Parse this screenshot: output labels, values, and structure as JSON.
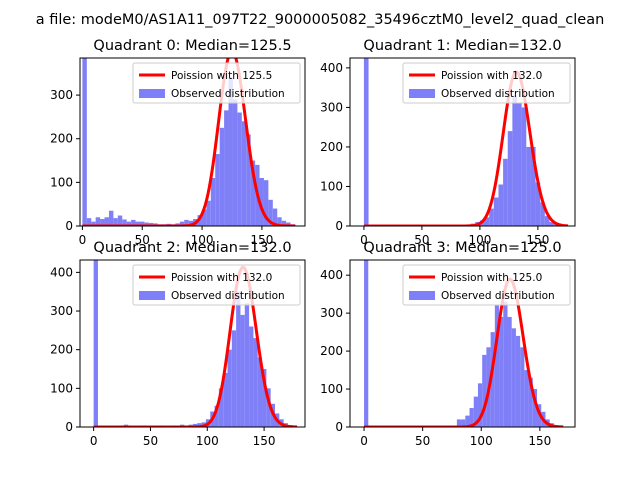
{
  "figure": {
    "suptitle": "a file: modeM0/AS1A11_097T22_9000005082_35496cztM0_level2_quad_clean"
  },
  "colors": {
    "hist": "#7f7ff8",
    "poisson": "#ff0000",
    "axes": "#000000",
    "background": "#ffffff"
  },
  "chart_data": [
    {
      "type": "bar",
      "title": "Quadrant 0: Median=125.5",
      "median": 125.5,
      "xlim": [
        -2,
        186
      ],
      "ylim": [
        0,
        385
      ],
      "xticks": [
        0,
        50,
        100,
        150
      ],
      "yticks": [
        0,
        100,
        200,
        300
      ],
      "bin_width": 3.7,
      "bins": [
        0,
        3.7,
        7.4,
        11.1,
        14.8,
        18.5,
        22.2,
        25.9,
        29.6,
        33.3,
        37,
        40.7,
        44.4,
        48.1,
        51.8,
        55.5,
        59.2,
        62.9,
        66.6,
        70.3,
        74,
        77.7,
        81.4,
        85.1,
        88.8,
        92.5,
        96.2,
        99.9,
        103.6,
        107.3,
        111,
        114.7,
        118.4,
        122.1,
        125.8,
        129.5,
        133.2,
        136.9,
        140.6,
        144.3,
        148,
        151.7,
        155.4,
        159.1,
        162.8,
        166.5,
        170.2,
        173.9
      ],
      "counts": [
        385,
        18,
        10,
        20,
        16,
        20,
        35,
        18,
        24,
        15,
        10,
        14,
        10,
        10,
        8,
        7,
        6,
        4,
        4,
        5,
        4,
        6,
        10,
        14,
        12,
        16,
        25,
        38,
        58,
        110,
        165,
        225,
        265,
        340,
        290,
        260,
        240,
        210,
        150,
        140,
        110,
        105,
        60,
        40,
        20,
        12,
        8,
        4
      ],
      "legend": {
        "location": "upper right",
        "line_label": "Poission with 125.5",
        "hist_label": "Observed distribution"
      }
    },
    {
      "type": "bar",
      "title": "Quadrant 1: Median=132.0",
      "median": 132.0,
      "xlim": [
        -12,
        182
      ],
      "ylim": [
        0,
        425
      ],
      "xticks": [
        0,
        50,
        100,
        150
      ],
      "yticks": [
        0,
        100,
        200,
        300,
        400
      ],
      "bin_width": 4.0,
      "bins": [
        0,
        4,
        8,
        12,
        16,
        20,
        24,
        28,
        32,
        36,
        40,
        44,
        48,
        52,
        56,
        60,
        64,
        68,
        72,
        76,
        80,
        84,
        88,
        92,
        96,
        100,
        104,
        108,
        112,
        116,
        120,
        124,
        128,
        132,
        136,
        140,
        144,
        148,
        152,
        156,
        160,
        164,
        168,
        172
      ],
      "counts": [
        425,
        0,
        0,
        0,
        0,
        0,
        0,
        0,
        0,
        0,
        0,
        0,
        0,
        0,
        0,
        0,
        0,
        0,
        0,
        0,
        0,
        0,
        2,
        6,
        10,
        14,
        22,
        44,
        72,
        105,
        170,
        240,
        330,
        310,
        300,
        200,
        200,
        110,
        60,
        25,
        10,
        5,
        3,
        1
      ],
      "legend": {
        "location": "upper right",
        "line_label": "Poission with 132.0",
        "hist_label": "Observed distribution"
      }
    },
    {
      "type": "bar",
      "title": "Quadrant 2: Median=132.0",
      "median": 132.0,
      "xlim": [
        -12,
        186
      ],
      "ylim": [
        0,
        432
      ],
      "xticks": [
        0,
        50,
        100,
        150
      ],
      "yticks": [
        0,
        100,
        200,
        300,
        400
      ],
      "bin_width": 3.8,
      "bins": [
        0,
        3.8,
        7.6,
        11.4,
        15.2,
        19,
        22.8,
        26.6,
        30.4,
        34.2,
        38,
        41.8,
        45.6,
        49.4,
        53.2,
        57,
        60.8,
        64.6,
        68.4,
        72.2,
        76,
        79.8,
        83.6,
        87.4,
        91.2,
        95,
        98.8,
        102.6,
        106.4,
        110.2,
        114,
        117.8,
        121.6,
        125.4,
        129.2,
        133,
        136.8,
        140.6,
        144.4,
        148.2,
        152,
        155.8,
        159.6,
        163.4,
        167.2,
        171,
        174.8
      ],
      "counts": [
        432,
        0,
        0,
        0,
        0,
        0,
        4,
        6,
        4,
        2,
        2,
        4,
        3,
        2,
        3,
        4,
        3,
        2,
        4,
        3,
        6,
        4,
        6,
        8,
        10,
        12,
        20,
        40,
        55,
        100,
        140,
        200,
        250,
        350,
        290,
        320,
        260,
        230,
        180,
        150,
        100,
        60,
        35,
        20,
        10,
        5,
        2
      ],
      "legend": {
        "location": "upper right",
        "line_label": "Poission with 132.0",
        "hist_label": "Observed distribution"
      }
    },
    {
      "type": "bar",
      "title": "Quadrant 3: Median=125.0",
      "median": 125.0,
      "xlim": [
        -12,
        180
      ],
      "ylim": [
        0,
        440
      ],
      "xticks": [
        0,
        50,
        100,
        150
      ],
      "yticks": [
        0,
        100,
        200,
        300,
        400
      ],
      "bin_width": 3.6,
      "bins": [
        0,
        3.6,
        7.2,
        10.8,
        14.4,
        18,
        21.6,
        25.2,
        28.8,
        32.4,
        36,
        39.6,
        43.2,
        46.8,
        50.4,
        54,
        57.6,
        61.2,
        64.8,
        68.4,
        72,
        75.6,
        79.2,
        82.8,
        86.4,
        90,
        93.6,
        97.2,
        100.8,
        104.4,
        108,
        111.6,
        115.2,
        118.8,
        122.4,
        126,
        129.6,
        133.2,
        136.8,
        140.4,
        144,
        147.6,
        151.2,
        154.8,
        158.4,
        162,
        165.6
      ],
      "counts": [
        440,
        0,
        0,
        0,
        0,
        0,
        0,
        0,
        0,
        0,
        0,
        0,
        0,
        0,
        0,
        0,
        0,
        0,
        0,
        0,
        2,
        4,
        20,
        20,
        30,
        50,
        80,
        115,
        190,
        210,
        250,
        320,
        290,
        330,
        290,
        260,
        240,
        210,
        150,
        130,
        100,
        60,
        40,
        20,
        10,
        5,
        2
      ],
      "legend": {
        "location": "upper right",
        "line_label": "Poission with 125.0",
        "hist_label": "Observed distribution"
      }
    }
  ]
}
